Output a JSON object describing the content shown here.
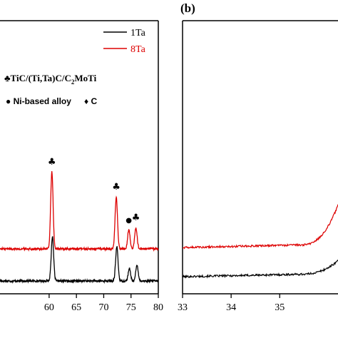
{
  "chart_data": [
    {
      "type": "line",
      "panel": "a",
      "xlabel": "",
      "ylabel": "",
      "xlim": [
        51,
        80
      ],
      "x_ticks": [
        60,
        65,
        70,
        75,
        80
      ],
      "x_tick_labels": [
        "60",
        "65",
        "70",
        "75",
        "80"
      ],
      "legend": {
        "position": "top-right",
        "entries": [
          "1Ta",
          "8Ta"
        ]
      },
      "series": [
        {
          "name": "1Ta",
          "color": "#000000",
          "peaks": [
            {
              "x": 60.6,
              "h": 62
            },
            {
              "x": 72.4,
              "h": 48
            },
            {
              "x": 74.7,
              "h": 17
            },
            {
              "x": 76.1,
              "h": 22
            }
          ]
        },
        {
          "name": "8Ta",
          "color": "#dd0000",
          "peaks": [
            {
              "x": 60.5,
              "h": 108
            },
            {
              "x": 72.3,
              "h": 73
            },
            {
              "x": 74.6,
              "h": 27
            },
            {
              "x": 75.9,
              "h": 30
            }
          ]
        }
      ],
      "annotations": {
        "phase_line1": "♣TiC/(Ti,Ta)C/C",
        "phase_line1_sub": "2",
        "phase_line1_end": "MoTi",
        "phase_line2_a": "● Ni-based alloy",
        "phase_line2_b": "♦ C",
        "peak_markers": [
          {
            "x": 60.5,
            "symbol": "♣"
          },
          {
            "x": 72.3,
            "symbol": "♣"
          },
          {
            "x": 74.6,
            "symbol": "●"
          },
          {
            "x": 75.9,
            "symbol": "♣"
          }
        ]
      }
    },
    {
      "type": "line",
      "panel": "b",
      "panel_label": "(b)",
      "xlabel": "",
      "ylabel": "",
      "xlim": [
        33,
        36.2
      ],
      "x_ticks": [
        33,
        34,
        35
      ],
      "x_tick_labels": [
        "33",
        "34",
        "35"
      ],
      "series": [
        {
          "name": "1Ta",
          "color": "#000000"
        },
        {
          "name": "8Ta",
          "color": "#dd0000"
        }
      ]
    }
  ]
}
